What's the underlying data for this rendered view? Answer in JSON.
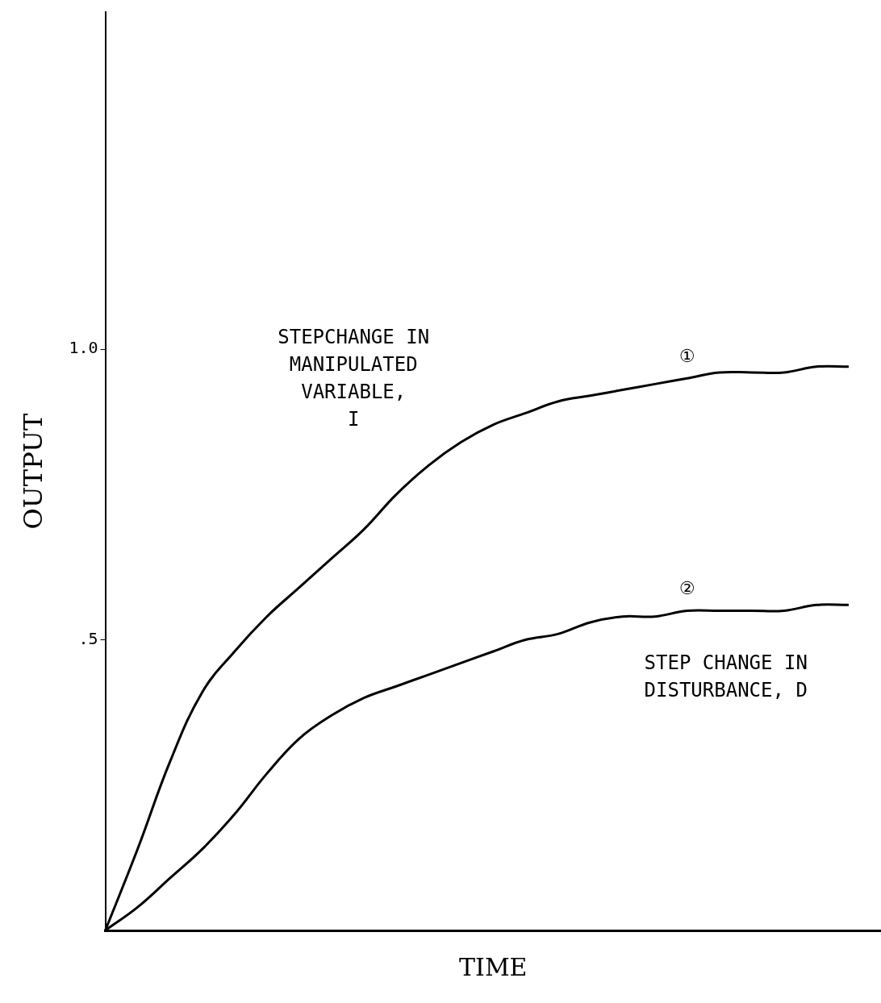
{
  "chart_data": {
    "type": "line",
    "xlabel": "TIME",
    "ylabel": "OUTPUT",
    "categories": [
      null,
      null,
      null,
      null,
      null,
      null,
      null,
      null,
      null,
      null,
      null,
      null,
      null,
      null,
      null,
      null,
      null,
      null,
      null,
      null,
      null,
      null,
      null,
      null,
      null
    ],
    "series": [
      {
        "name": "①",
        "color": "#000000",
        "values": [
          0,
          0.14,
          0.29,
          0.41,
          0.48,
          0.54,
          0.59,
          0.64,
          0.69,
          0.75,
          0.8,
          0.84,
          0.87,
          0.89,
          0.91,
          0.92,
          0.93,
          0.94,
          0.95,
          0.96,
          0.96,
          0.96,
          0.97,
          0.97,
          null
        ]
      },
      {
        "name": "②",
        "color": "#000000",
        "values": [
          0,
          0.04,
          0.09,
          0.14,
          0.2,
          0.27,
          0.33,
          0.37,
          0.4,
          0.42,
          0.44,
          0.46,
          0.48,
          0.5,
          0.51,
          0.53,
          0.54,
          0.54,
          0.55,
          0.55,
          0.55,
          0.55,
          0.56,
          0.56,
          null
        ]
      }
    ],
    "ylim": [
      0,
      1.58
    ],
    "yticks": [
      {
        "value": 0.5,
        "label": ".5"
      },
      {
        "value": 1.0,
        "label": "1.0"
      }
    ],
    "tick_labels": "y",
    "legend": false,
    "grid": false,
    "marker": "none",
    "line_style": "solid",
    "annotations": [
      "STEPCHANGE IN\nMANIPULATED\nVARIABLE,\nI",
      "STEP CHANGE IN\nDISTURBANCE, D"
    ]
  }
}
